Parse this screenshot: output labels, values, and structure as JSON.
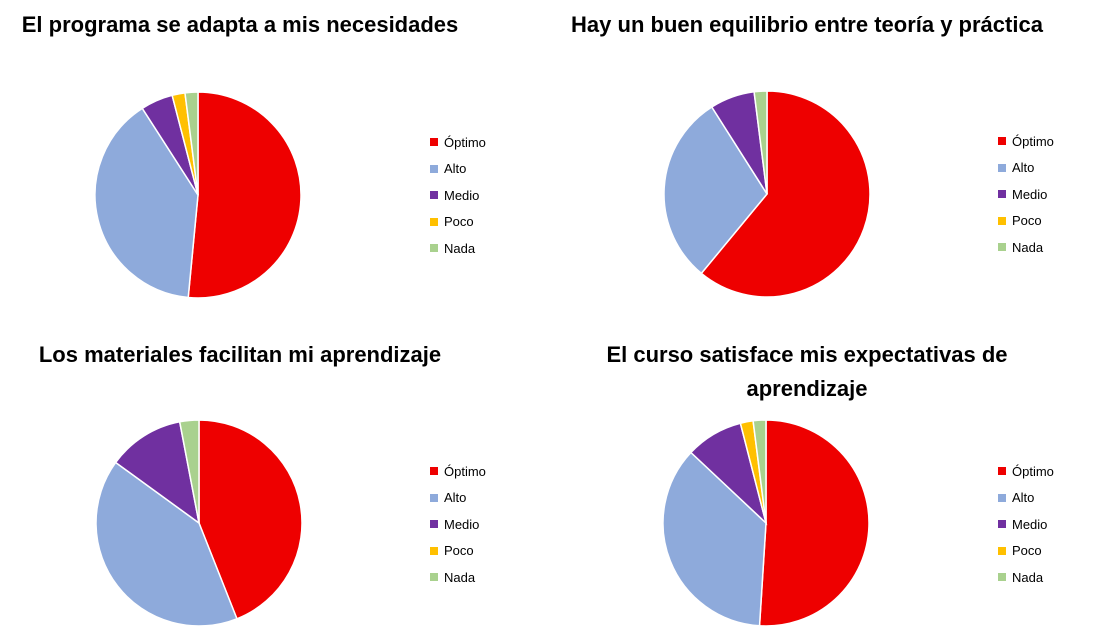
{
  "legend": [
    "Óptimo",
    "Alto",
    "Medio",
    "Poco",
    "Nada"
  ],
  "colors": [
    "#ee0000",
    "#8eaadb",
    "#7030a0",
    "#ffc000",
    "#a9d18e"
  ],
  "chart_data": [
    {
      "type": "pie",
      "title": "El programa  se adapta a mis necesidades",
      "categories": [
        "Óptimo",
        "Alto",
        "Medio",
        "Poco",
        "Nada"
      ],
      "values": [
        51,
        39,
        5,
        2,
        2
      ]
    },
    {
      "type": "pie",
      "title": "Hay un buen equilibrio  entre teoría y práctica",
      "categories": [
        "Óptimo",
        "Alto",
        "Medio",
        "Poco",
        "Nada"
      ],
      "values": [
        61,
        30,
        7,
        0,
        2
      ]
    },
    {
      "type": "pie",
      "title": "Los materiales  facilitan  mi aprendizaje",
      "categories": [
        "Óptimo",
        "Alto",
        "Medio",
        "Poco",
        "Nada"
      ],
      "values": [
        44,
        41,
        12,
        0,
        3
      ]
    },
    {
      "type": "pie",
      "title": "El curso satisface mis expectativas de aprendizaje",
      "categories": [
        "Óptimo",
        "Alto",
        "Medio",
        "Poco",
        "Nada"
      ],
      "values": [
        51,
        36,
        9,
        2,
        2
      ]
    }
  ]
}
